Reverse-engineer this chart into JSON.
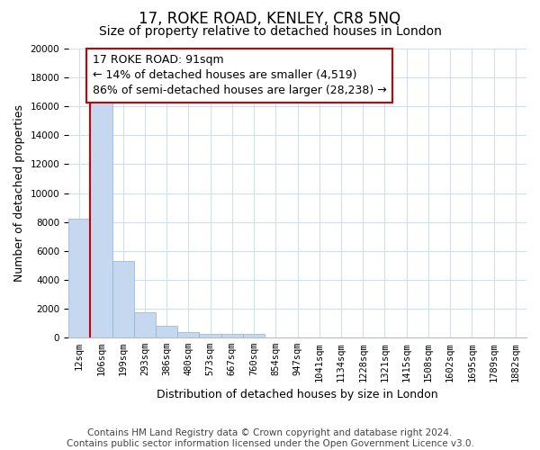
{
  "title": "17, ROKE ROAD, KENLEY, CR8 5NQ",
  "subtitle": "Size of property relative to detached houses in London",
  "xlabel": "Distribution of detached houses by size in London",
  "ylabel": "Number of detached properties",
  "categories": [
    "12sqm",
    "106sqm",
    "199sqm",
    "293sqm",
    "386sqm",
    "480sqm",
    "573sqm",
    "667sqm",
    "760sqm",
    "854sqm",
    "947sqm",
    "1041sqm",
    "1134sqm",
    "1228sqm",
    "1321sqm",
    "1415sqm",
    "1508sqm",
    "1602sqm",
    "1695sqm",
    "1789sqm",
    "1882sqm"
  ],
  "values": [
    8200,
    16600,
    5300,
    1750,
    800,
    350,
    250,
    250,
    250,
    0,
    0,
    0,
    0,
    0,
    0,
    0,
    0,
    0,
    0,
    0,
    0
  ],
  "bar_color": "#c5d8f0",
  "bar_edge_color": "#8ab4d8",
  "ylim": [
    0,
    20000
  ],
  "yticks": [
    0,
    2000,
    4000,
    6000,
    8000,
    10000,
    12000,
    14000,
    16000,
    18000,
    20000
  ],
  "vline_x": 0.5,
  "vline_color": "#cc0000",
  "annotation_text": "17 ROKE ROAD: 91sqm\n← 14% of detached houses are smaller (4,519)\n86% of semi-detached houses are larger (28,238) →",
  "annotation_box_color": "#ffffff",
  "annotation_box_edge": "#cc0000",
  "footer_line1": "Contains HM Land Registry data © Crown copyright and database right 2024.",
  "footer_line2": "Contains public sector information licensed under the Open Government Licence v3.0.",
  "background_color": "#ffffff",
  "grid_color": "#d0dff0",
  "title_fontsize": 12,
  "subtitle_fontsize": 10,
  "axis_label_fontsize": 9,
  "tick_fontsize": 7.5,
  "annotation_fontsize": 9,
  "footer_fontsize": 7.5
}
